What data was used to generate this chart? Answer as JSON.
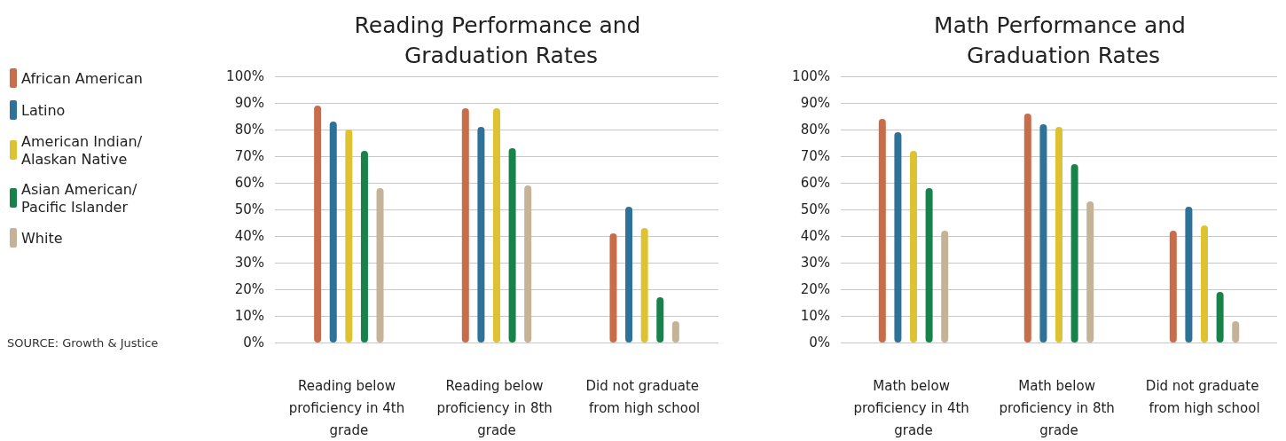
{
  "chart_data": [
    {
      "type": "bar",
      "title": "Reading Performance and Graduation Rates",
      "categories": [
        "Reading below proficiency in 4th grade",
        "Reading below proficiency in 8th grade",
        "Did not graduate from high school"
      ],
      "series": [
        {
          "name": "African American",
          "color": "#c86c4a",
          "values": [
            89,
            88,
            41
          ]
        },
        {
          "name": "Latino",
          "color": "#2e7199",
          "values": [
            83,
            81,
            51
          ]
        },
        {
          "name": "American Indian/ Alaskan Native",
          "color": "#dfc232",
          "values": [
            80,
            88,
            43
          ]
        },
        {
          "name": "Asian American/ Pacific Islander",
          "color": "#17834b",
          "values": [
            72,
            73,
            17
          ]
        },
        {
          "name": "White",
          "color": "#c4b397",
          "values": [
            58,
            59,
            8
          ]
        }
      ],
      "ylim": [
        0,
        100
      ],
      "yticks": [
        {
          "value": 0,
          "label": "0%"
        },
        {
          "value": 10,
          "label": "10%"
        },
        {
          "value": 20,
          "label": "20%"
        },
        {
          "value": 30,
          "label": "30%"
        },
        {
          "value": 40,
          "label": "40%"
        },
        {
          "value": 50,
          "label": "50%"
        },
        {
          "value": 60,
          "label": "60%"
        },
        {
          "value": 70,
          "label": "70%"
        },
        {
          "value": 80,
          "label": "80%"
        },
        {
          "value": 90,
          "label": "90%"
        },
        {
          "value": 100,
          "label": "100%"
        }
      ],
      "grid": "y",
      "legend": "left",
      "annotations": [
        "SOURCE: Growth & Justice"
      ]
    },
    {
      "type": "bar",
      "title": "Math Performance and Graduation Rates",
      "categories": [
        "Math below proficiency in 4th grade",
        "Math below proficiency in 8th grade",
        "Did not graduate from high school"
      ],
      "series": [
        {
          "color": "#c86c4a",
          "values": [
            84,
            86,
            42
          ]
        },
        {
          "color": "#2e7199",
          "values": [
            79,
            82,
            51
          ]
        },
        {
          "color": "#dfc232",
          "values": [
            72,
            81,
            44
          ]
        },
        {
          "color": "#17834b",
          "values": [
            58,
            67,
            19
          ]
        },
        {
          "color": "#c4b397",
          "values": [
            42,
            53,
            8
          ]
        }
      ],
      "ylim": [
        0,
        100
      ],
      "yticks": [
        {
          "value": 0,
          "label": "0%"
        },
        {
          "value": 10,
          "label": "10%"
        },
        {
          "value": 20,
          "label": "20%"
        },
        {
          "value": 30,
          "label": "30%"
        },
        {
          "value": 40,
          "label": "40%"
        },
        {
          "value": 50,
          "label": "50%"
        },
        {
          "value": 60,
          "label": "60%"
        },
        {
          "value": 70,
          "label": "70%"
        },
        {
          "value": 80,
          "label": "80%"
        },
        {
          "value": 90,
          "label": "90%"
        },
        {
          "value": 100,
          "label": "100%"
        }
      ],
      "grid": "y"
    }
  ]
}
